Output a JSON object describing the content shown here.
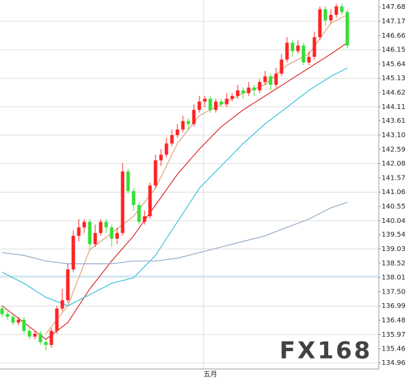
{
  "chart_data": {
    "type": "candlestick",
    "xlim": [
      -0.375,
      68.75
    ],
    "xticks": [
      {
        "value": 36.75,
        "label": "五月"
      }
    ],
    "ylim": [
      134.74,
      147.93
    ],
    "yticks": [
      {
        "value": 147.68,
        "label": "147.68"
      },
      147.17,
      146.66,
      146.15,
      145.64,
      145.13,
      144.62,
      144.11,
      143.61,
      {
        "value": 143.1,
        "label": "143.10"
      },
      142.59,
      142.08,
      141.57,
      141.06,
      140.55,
      140.04,
      139.54,
      139.03,
      138.52,
      138.01,
      {
        "value": 137.5,
        "label": "137.50"
      },
      136.99,
      136.48,
      135.97,
      135.46,
      134.96
    ],
    "grid": true,
    "reference_line": 138.06,
    "up_color": "#ff2222",
    "down_color": "#33e033",
    "watermark": "FX168",
    "x": [
      0,
      1,
      2,
      3,
      4,
      5,
      6,
      7,
      8,
      9,
      10,
      11,
      12,
      13,
      14,
      15,
      16,
      17,
      18,
      19,
      20,
      21,
      22,
      23,
      24,
      25,
      26,
      27,
      28,
      29,
      30,
      31,
      32,
      33,
      34,
      35,
      36,
      37,
      38,
      39,
      40,
      41,
      42,
      43,
      44,
      45,
      46,
      47,
      48,
      49,
      50,
      51,
      52,
      53,
      54,
      55,
      56,
      57,
      58,
      59,
      60,
      61,
      62,
      63
    ],
    "open": [
      136.9,
      136.7,
      136.6,
      136.4,
      136.5,
      136.1,
      135.9,
      136.0,
      135.7,
      135.6,
      136.1,
      136.9,
      137.2,
      138.3,
      139.5,
      139.8,
      140.0,
      139.2,
      139.6,
      140.0,
      139.8,
      139.4,
      139.6,
      141.8,
      141.1,
      140.6,
      140.0,
      140.2,
      141.3,
      142.2,
      142.4,
      142.8,
      143.1,
      143.3,
      143.6,
      143.5,
      144.0,
      144.3,
      144.4,
      144.0,
      144.3,
      144.2,
      144.4,
      144.5,
      144.7,
      144.6,
      144.8,
      144.7,
      145.0,
      145.2,
      144.9,
      145.3,
      145.8,
      146.4,
      146.1,
      146.3,
      145.7,
      145.9,
      146.6,
      147.6,
      147.2,
      147.4,
      147.7,
      147.5
    ],
    "high": [
      137.0,
      136.8,
      136.7,
      136.6,
      136.6,
      136.2,
      136.1,
      136.1,
      135.8,
      136.2,
      137.0,
      137.6,
      138.5,
      139.7,
      140.1,
      140.1,
      140.1,
      139.9,
      140.1,
      140.1,
      139.9,
      139.8,
      142.1,
      141.9,
      141.2,
      140.7,
      140.4,
      141.4,
      142.4,
      142.6,
      143.0,
      143.3,
      143.5,
      143.8,
      143.7,
      144.2,
      144.5,
      144.5,
      144.5,
      144.4,
      144.4,
      144.6,
      144.6,
      144.9,
      144.8,
      145.0,
      144.9,
      145.1,
      145.4,
      145.3,
      145.5,
      146.0,
      146.6,
      146.5,
      146.5,
      146.4,
      146.1,
      146.8,
      147.7,
      147.7,
      147.6,
      147.8,
      147.8,
      147.6
    ],
    "low": [
      136.6,
      136.5,
      136.3,
      136.3,
      136.0,
      135.8,
      135.8,
      135.6,
      135.4,
      135.5,
      136.0,
      136.8,
      137.1,
      138.2,
      139.3,
      139.6,
      139.0,
      139.1,
      139.5,
      139.6,
      139.1,
      139.2,
      139.5,
      141.0,
      140.4,
      139.9,
      139.9,
      140.1,
      141.2,
      142.0,
      142.3,
      142.7,
      143.0,
      143.2,
      143.3,
      143.4,
      143.9,
      144.1,
      143.9,
      143.9,
      144.1,
      144.1,
      144.3,
      144.4,
      144.4,
      144.5,
      144.5,
      144.6,
      144.9,
      144.7,
      144.8,
      145.2,
      145.7,
      145.9,
      146.0,
      145.6,
      145.6,
      145.8,
      146.5,
      147.0,
      147.1,
      147.3,
      147.4,
      146.2
    ],
    "close": [
      136.7,
      136.6,
      136.4,
      136.5,
      136.1,
      135.9,
      136.0,
      135.7,
      135.6,
      136.1,
      136.9,
      137.2,
      138.3,
      139.5,
      139.8,
      140.0,
      139.2,
      139.6,
      140.0,
      139.8,
      139.4,
      139.6,
      141.8,
      141.1,
      140.6,
      140.0,
      140.2,
      141.3,
      142.2,
      142.4,
      142.8,
      143.1,
      143.3,
      143.6,
      143.5,
      144.0,
      144.3,
      144.4,
      144.0,
      144.3,
      144.2,
      144.4,
      144.5,
      144.7,
      144.6,
      144.8,
      144.7,
      145.0,
      145.2,
      144.9,
      145.3,
      145.8,
      146.4,
      146.1,
      146.3,
      145.7,
      145.9,
      146.6,
      147.6,
      147.2,
      147.4,
      147.7,
      147.5,
      146.3
    ],
    "ma_x": [
      0,
      4,
      8,
      12,
      16,
      20,
      24,
      28,
      32,
      36,
      40,
      44,
      48,
      52,
      56,
      60,
      63
    ],
    "lines": [
      {
        "color": "#e0a070",
        "values": [
          null,
          null,
          136.0,
          137.0,
          139.0,
          139.6,
          140.2,
          141.2,
          142.8,
          143.8,
          144.2,
          144.6,
          144.9,
          145.6,
          146.0,
          147.1,
          147.4
        ]
      },
      {
        "color": "#dd2222",
        "values": [
          137.0,
          136.4,
          135.8,
          136.4,
          137.6,
          138.6,
          139.5,
          140.6,
          141.7,
          142.6,
          143.4,
          144.0,
          144.5,
          145.0,
          145.5,
          146.0,
          146.4
        ]
      },
      {
        "color": "#33c0d8",
        "values": [
          138.2,
          137.8,
          137.3,
          137.0,
          137.4,
          137.8,
          138.0,
          138.8,
          140.0,
          141.2,
          142.0,
          142.8,
          143.5,
          144.1,
          144.7,
          145.2,
          145.5
        ]
      },
      {
        "color": "#90a8c8",
        "values": [
          138.9,
          138.8,
          138.6,
          138.5,
          138.5,
          138.5,
          138.6,
          138.6,
          138.7,
          138.9,
          139.1,
          139.3,
          139.5,
          139.8,
          140.1,
          140.5,
          140.7
        ]
      }
    ]
  }
}
